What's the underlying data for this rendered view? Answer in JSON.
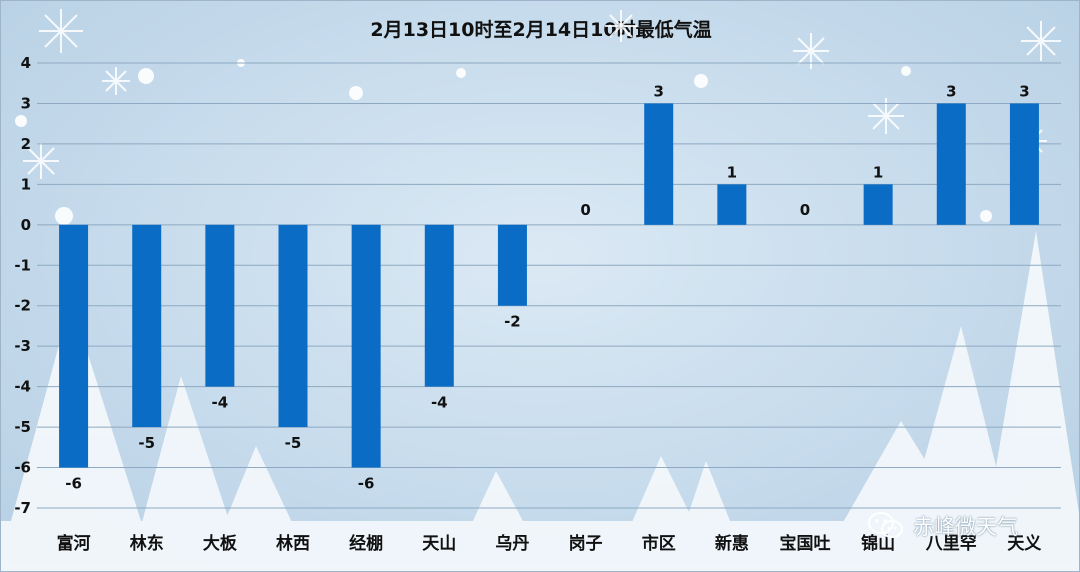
{
  "chart_data": {
    "type": "bar",
    "title": "2月13日10时至2月14日10时最低气温",
    "categories": [
      "富河",
      "林东",
      "大板",
      "林西",
      "经棚",
      "天山",
      "乌丹",
      "岗子",
      "市区",
      "新惠",
      "宝国吐",
      "锦山",
      "八里罕",
      "天义"
    ],
    "values": [
      -6,
      -5,
      -4,
      -5,
      -6,
      -4,
      -2,
      0,
      3,
      1,
      0,
      1,
      3,
      3
    ],
    "xlabel": "",
    "ylabel": "",
    "ylim": [
      -7,
      4
    ],
    "yticks": [
      4,
      3,
      2,
      1,
      0,
      -1,
      -2,
      -3,
      -4,
      -5,
      -6,
      -7
    ],
    "grid": true,
    "bar_color": "#0a6cc4",
    "data_labels": true
  },
  "watermark": {
    "text": "赤峰微天气",
    "icon": "wechat-icon"
  },
  "colors": {
    "background": "#c8dcec",
    "gridline": "#8ea9c1"
  }
}
